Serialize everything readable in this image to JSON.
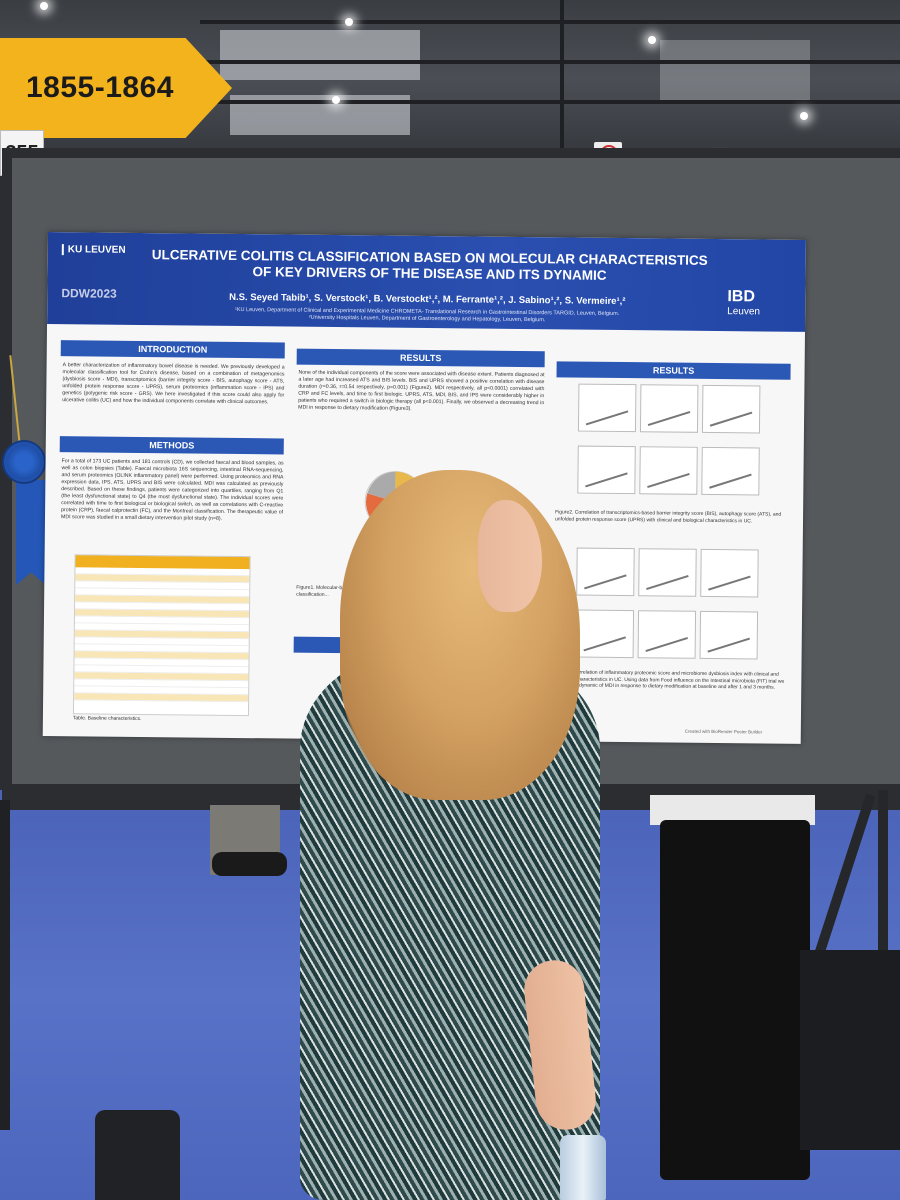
{
  "sign": {
    "range": "1855-1864",
    "booth_fragment": "355"
  },
  "poster": {
    "institution_logo": "KU LEUVEN",
    "conference_logo": "DDW2023",
    "title_line1": "ULCERATIVE COLITIS CLASSIFICATION BASED ON MOLECULAR CHARACTERISTICS",
    "title_line2": "OF KEY DRIVERS OF THE DISEASE AND ITS DYNAMIC",
    "authors": "N.S. Seyed Tabib¹, S. Verstock¹, B. Verstockt¹,², M. Ferrante¹,², J. Sabino¹,², S. Vermeire¹,²",
    "affiliation1": "¹KU Leuven, Department of Clinical and Experimental Medicine CHROMETA- Translational Research in Gastrointestinal Disorders TARGID, Leuven, Belgium.",
    "affiliation2": "²University Hospitals Leuven, Department of Gastroenterology and Hepatology, Leuven, Belgium.",
    "partner_logo": "IBD",
    "partner_logo_sub": "Leuven",
    "sections": {
      "introduction": "INTRODUCTION",
      "methods": "METHODS",
      "results_mid": "RESULTS",
      "results_right": "RESULTS"
    },
    "intro_text": "A better characterization of inflammatory bowel disease is needed. We previously developed a molecular classification tool for Crohn's disease, based on a combination of metagenomics (dysbiosis score - MDI), transcriptomics (barrier integrity score - BIS, autophagy score - ATS, unfolded protein response score - UPRS), serum proteomics (inflammation score - IPS) and genetics (polygenic risk score - GRS). We here investigated if this score could also apply for ulcerative colitis (UC) and how the individual components correlate with clinical outcomes.",
    "methods_text": "For a total of 173 UC patients and 181 controls (CD), we collected faecal and blood samples, as well as colon biopsies (Table). Faecal microbiota 16S sequencing, intestinal RNA-sequencing, and serum proteomics (OLINK inflammatory panel) were performed. Using proteomics and RNA expression data, IPS, ATS, UPRS and BIS were calculated. MDI was calculated as previously described. Based on these findings, patients were categorized into quartiles, ranging from Q1 (the least dysfunctional state) to Q4 (the most dysfunctional state). The individual scores were correlated with time to first biological or biological switch, as well as correlations with C-reactive protein (CRP), faecal calprotectin (FC), and the Montreal classification. The therapeutic value of MDI score was studied in a small dietary intervention pilot study (n=8).",
    "results_text": "None of the individual components of the score were associated with disease extent. Patients diagnosed at a later age had increased ATS and BIS levels. BIS and UPRS showed a positive correlation with disease duration (r=0.36, r=0.54 respectively, p=0.001) (Figure2). MDI respectively, all p<0.0001) correlated with CRP and FC levels, and time to first biologic. UPRS, ATS, MDI, BIS, and IPS were considerably higher in patients who required a switch in biologic therapy (all p<0.001). Finally, we observed a decreasing trend in MDI in response to dietary modification (Figure3).",
    "table_caption": "Table. Baseline characteristics.",
    "figure1_caption": "Figure1. Molecular-based classification...",
    "figure2_caption": "Figure2. Correlation of transcriptomics-based barrier integrity score (BIS), autophagy score (ATS), and unfolded protein response score (UPRS) with clinical and biological characteristics in UC.",
    "figure3_caption": "Figure3. Correlation of inflammatory proteomic score and microbiome dysbiosis index with clinical and biological characteristics in UC. Using data from Food influence on the Intestinal microbiota (FIT) trial we studied the dynamic of MDI in response to dietary modification at baseline and after 1 and 3 months.",
    "footer": "Created with BioRender Poster Builder"
  }
}
